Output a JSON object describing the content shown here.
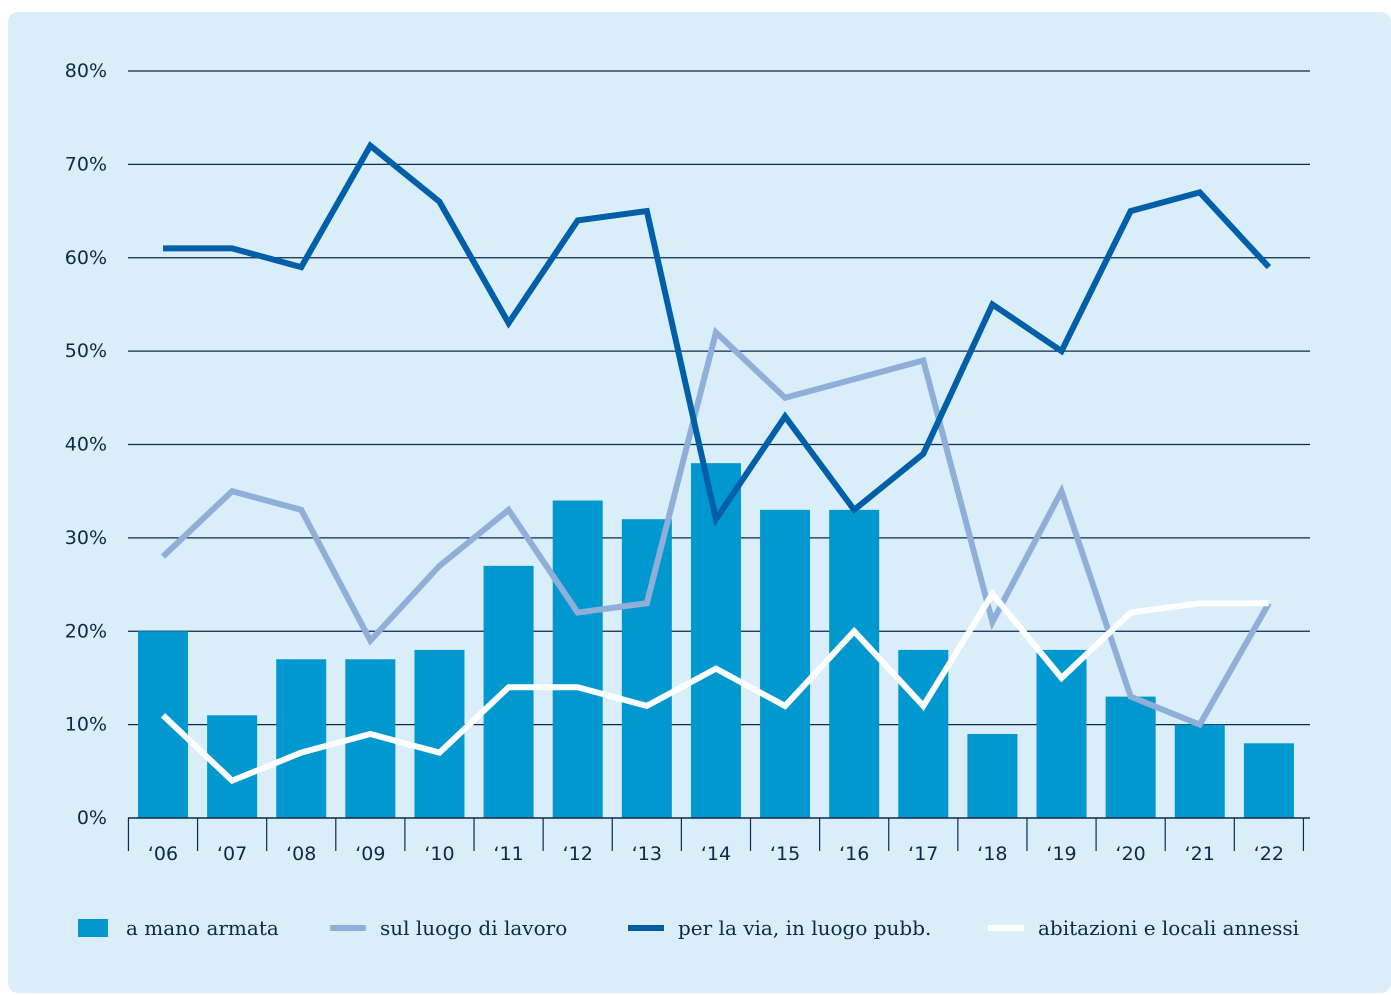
{
  "chart_data": {
    "type": "bar",
    "categories": [
      "‘06",
      "‘07",
      "‘08",
      "‘09",
      "‘10",
      "‘11",
      "‘12",
      "‘13",
      "‘14",
      "‘15",
      "‘16",
      "‘17",
      "‘18",
      "‘19",
      "‘20",
      "‘21",
      "‘22"
    ],
    "ylim": [
      0,
      80
    ],
    "yticks": [
      "0%",
      "10%",
      "20%",
      "30%",
      "40%",
      "50%",
      "60%",
      "70%",
      "80%"
    ],
    "grid": true,
    "legend_position": "bottom",
    "series": [
      {
        "name": "a mano armata",
        "kind": "bar",
        "color": "#0098cf",
        "values": [
          20,
          11,
          17,
          17,
          18,
          27,
          34,
          32,
          38,
          33,
          33,
          18,
          9,
          18,
          13,
          10,
          8
        ]
      },
      {
        "name": "sul luogo di lavoro",
        "kind": "line",
        "color": "#8faed8",
        "values": [
          28,
          35,
          33,
          19,
          27,
          33,
          22,
          23,
          52,
          45,
          47,
          49,
          21,
          35,
          13,
          10,
          23
        ]
      },
      {
        "name": "per la via, in luogo pubb.",
        "kind": "line",
        "color": "#005fa8",
        "values": [
          61,
          61,
          59,
          72,
          66,
          53,
          64,
          65,
          32,
          43,
          33,
          39,
          55,
          50,
          65,
          67,
          59
        ]
      },
      {
        "name": "abitazioni e locali annessi",
        "kind": "line",
        "color": "#ffffff",
        "values": [
          11,
          4,
          7,
          9,
          7,
          14,
          14,
          12,
          16,
          12,
          20,
          12,
          24,
          15,
          22,
          23,
          23
        ]
      }
    ]
  }
}
